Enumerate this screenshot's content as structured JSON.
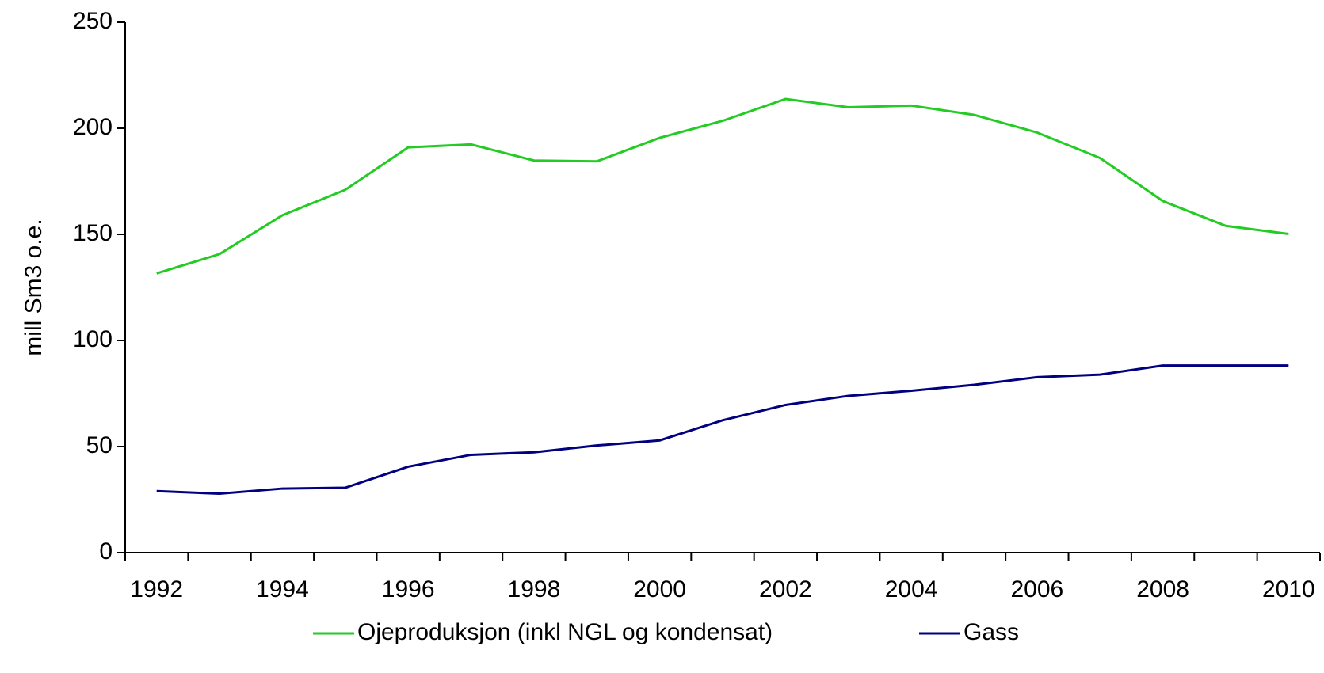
{
  "chart_data": {
    "type": "line",
    "y_label": "mill Sm3 o.e.",
    "categories": [
      "1992",
      null,
      "1994",
      null,
      "1996",
      null,
      "1998",
      null,
      "2000",
      null,
      "2002",
      null,
      "2004",
      null,
      "2006",
      null,
      "2008",
      null,
      "2010"
    ],
    "series": [
      {
        "name": "Ojeproduksjon (inkl NGL og kondensat)",
        "color": "#22cc22",
        "values": [
          131.6,
          140.7,
          159,
          171,
          191,
          192.4,
          184.8,
          184.4,
          195.5,
          203.5,
          213.8,
          209.9,
          210.7,
          206.3,
          198,
          186,
          165.7,
          154,
          150.2
        ]
      },
      {
        "name": "Gass",
        "color": "#000080",
        "values": [
          29,
          27.8,
          30.2,
          30.6,
          40.5,
          46.1,
          47.3,
          50.5,
          52.9,
          62.4,
          69.6,
          73.9,
          76.3,
          79.1,
          82.7,
          83.9,
          88.2,
          88.2,
          88.2
        ]
      }
    ],
    "ylim": [
      0,
      250
    ],
    "yticks": [
      0,
      50,
      100,
      150,
      200,
      250
    ],
    "grid": false,
    "legend": "bottom"
  }
}
